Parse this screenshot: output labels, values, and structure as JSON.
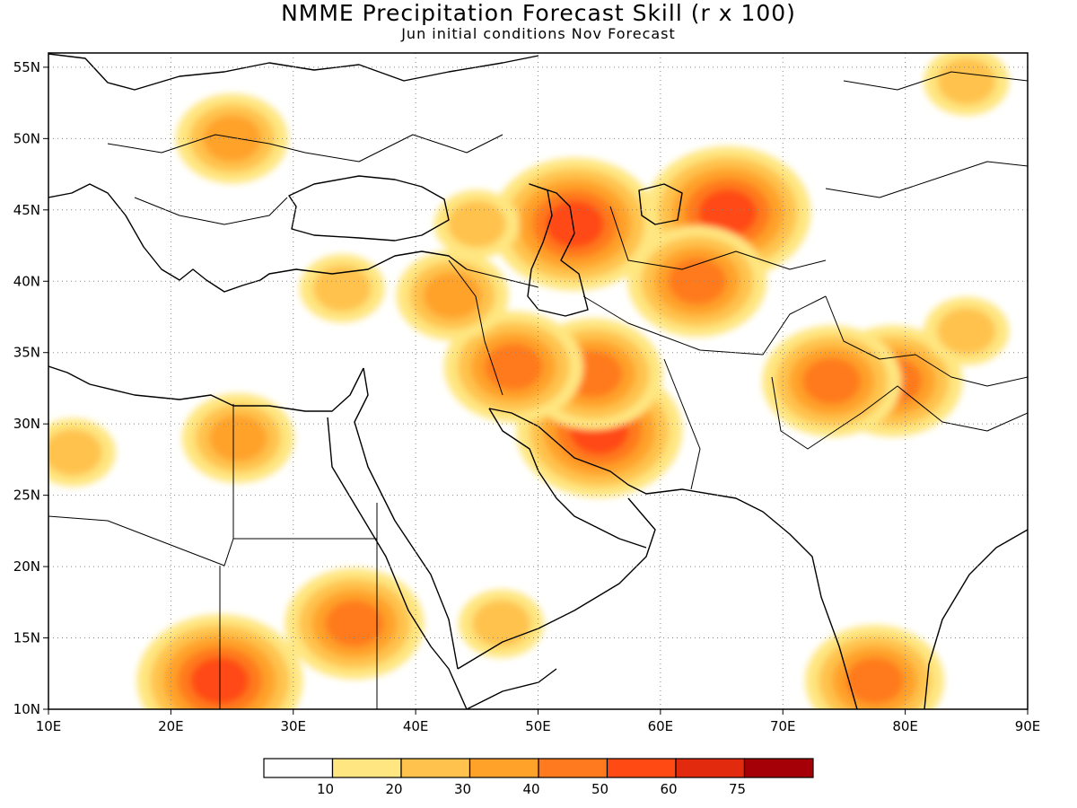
{
  "title": "NMME Precipitation Forecast Skill (r x 100)",
  "subtitle": "Jun initial conditions  Nov Forecast",
  "map": {
    "projection": "equirectangular",
    "lon_range": [
      10,
      90
    ],
    "lat_range": [
      10,
      56
    ],
    "grid": "dotted",
    "lon_tick_labels": [
      "10E",
      "20E",
      "30E",
      "40E",
      "50E",
      "60E",
      "70E",
      "80E",
      "90E"
    ],
    "lat_tick_labels": [
      "55N",
      "50N",
      "45N",
      "40N",
      "35N",
      "30N",
      "25N",
      "20N",
      "15N",
      "10N"
    ]
  },
  "colorbar": {
    "colors": [
      "#ffffff",
      "#ffe680",
      "#ffc34d",
      "#ffa229",
      "#ff7a1f",
      "#ff4a14",
      "#e22a0e",
      "#a50008"
    ],
    "labels": [
      "10",
      "20",
      "30",
      "40",
      "50",
      "60",
      "75"
    ]
  },
  "chart_data": {
    "type": "heatmap",
    "variable": "Precipitation Forecast Skill (r x 100)",
    "levels": [
      10,
      20,
      30,
      40,
      50,
      60,
      75
    ],
    "regions": [
      {
        "lon": 65.5,
        "lat": 44.8,
        "value": 55
      },
      {
        "lon": 53.0,
        "lat": 44.0,
        "value": 50
      },
      {
        "lon": 55.0,
        "lat": 29.5,
        "value": 55
      },
      {
        "lon": 54.5,
        "lat": 33.5,
        "value": 45
      },
      {
        "lon": 48.0,
        "lat": 34.0,
        "value": 40
      },
      {
        "lon": 63.0,
        "lat": 40.0,
        "value": 40
      },
      {
        "lon": 79.0,
        "lat": 33.0,
        "value": 45
      },
      {
        "lon": 74.0,
        "lat": 33.0,
        "value": 40
      },
      {
        "lon": 85.0,
        "lat": 36.5,
        "value": 25
      },
      {
        "lon": 43.0,
        "lat": 39.0,
        "value": 30
      },
      {
        "lon": 34.0,
        "lat": 39.5,
        "value": 20
      },
      {
        "lon": 25.0,
        "lat": 50.0,
        "value": 30
      },
      {
        "lon": 25.5,
        "lat": 29.0,
        "value": 35
      },
      {
        "lon": 35.0,
        "lat": 16.0,
        "value": 40
      },
      {
        "lon": 24.0,
        "lat": 12.0,
        "value": 55
      },
      {
        "lon": 77.5,
        "lat": 12.0,
        "value": 45
      },
      {
        "lon": 47.0,
        "lat": 16.0,
        "value": 20
      },
      {
        "lon": 45.0,
        "lat": 44.0,
        "value": 25
      },
      {
        "lon": 85.0,
        "lat": 54.0,
        "value": 20
      },
      {
        "lon": 12.0,
        "lat": 28.0,
        "value": 20
      }
    ]
  }
}
